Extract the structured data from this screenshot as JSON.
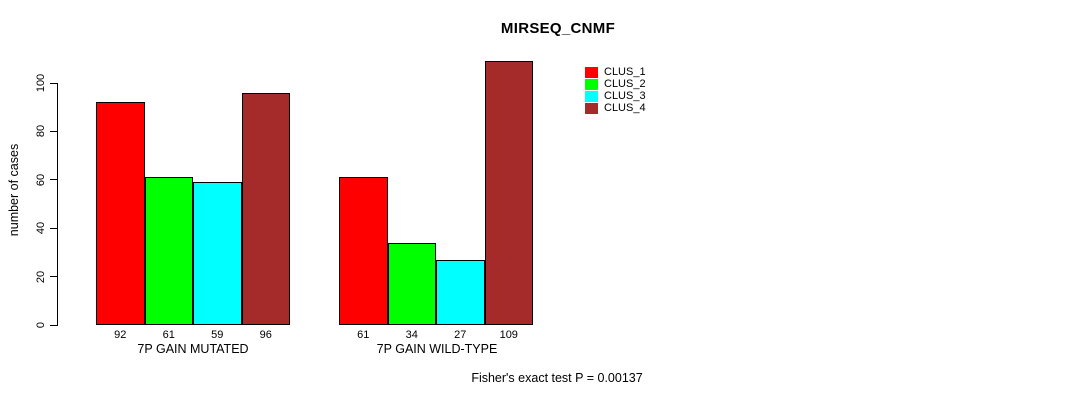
{
  "chart_data": {
    "type": "bar",
    "title": "MIRSEQ_CNMF",
    "ylabel": "number of cases",
    "xlabel": "",
    "categories": [
      "7P GAIN MUTATED",
      "7P GAIN WILD-TYPE"
    ],
    "series": [
      {
        "name": "CLUS_1",
        "color": "#FF0000",
        "values": [
          92,
          61
        ]
      },
      {
        "name": "CLUS_2",
        "color": "#00FF00",
        "values": [
          61,
          34
        ]
      },
      {
        "name": "CLUS_3",
        "color": "#00FFFF",
        "values": [
          59,
          27
        ]
      },
      {
        "name": "CLUS_4",
        "color": "#A52A2A",
        "values": [
          96,
          109
        ]
      }
    ],
    "yticks": [
      0,
      20,
      40,
      60,
      80,
      100
    ],
    "ylim": [
      0,
      109
    ],
    "grid": false,
    "bar_value_labels": true,
    "legend_position": "top-right",
    "annotation": "Fisher's exact test P = 0.00137"
  }
}
